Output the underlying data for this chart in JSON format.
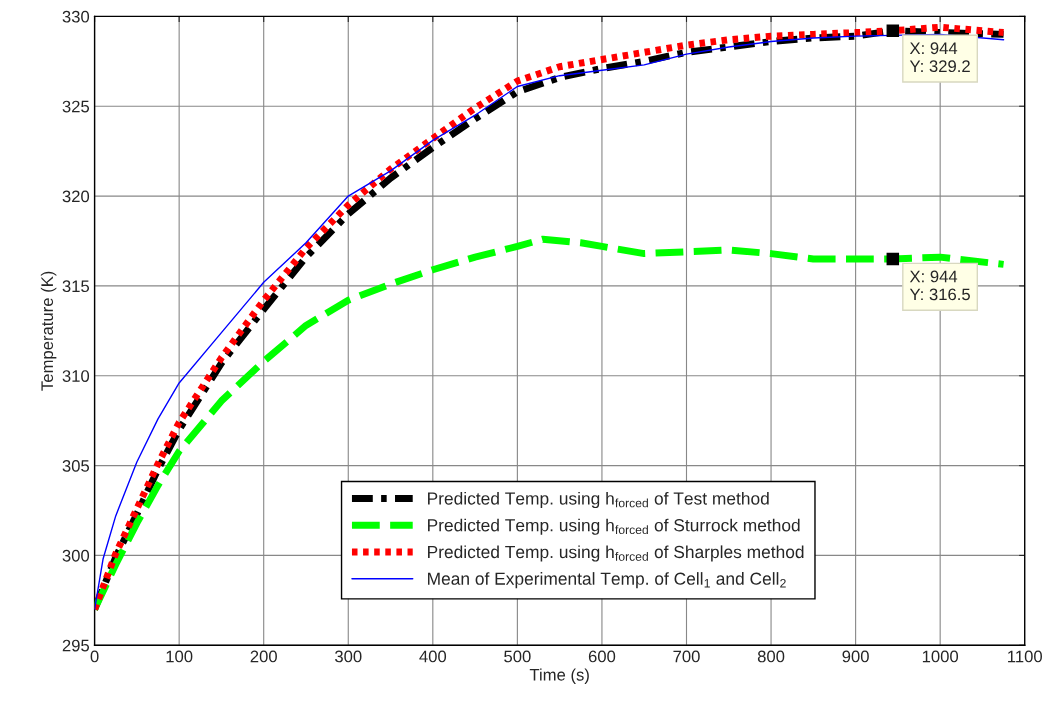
{
  "chart_data": {
    "type": "line",
    "xlabel": "Time (s)",
    "ylabel": "Temperature (K)",
    "xlim": [
      0,
      1100
    ],
    "xticks": [
      0,
      100,
      200,
      300,
      400,
      500,
      600,
      700,
      800,
      900,
      1000,
      1100
    ],
    "ylim": [
      295,
      330
    ],
    "yticks": [
      295,
      300,
      305,
      310,
      315,
      320,
      325,
      330
    ],
    "grid": true,
    "legend": "bottom",
    "series": [
      {
        "name": "Predicted Temp. using h$_{forced}$ of Test method",
        "color": "#000000",
        "line_style": "dashdot",
        "x": [
          0,
          25,
          50,
          75,
          100,
          150,
          200,
          250,
          300,
          350,
          400,
          450,
          500,
          550,
          600,
          650,
          700,
          750,
          800,
          850,
          900,
          944,
          1000,
          1075
        ],
        "values": [
          297,
          299.9,
          302.3,
          304.8,
          307.0,
          310.7,
          313.7,
          316.6,
          319.0,
          321.0,
          322.7,
          324.3,
          325.8,
          326.6,
          327.1,
          327.5,
          328.0,
          328.3,
          328.6,
          328.8,
          328.9,
          329.2,
          329.1,
          329.0
        ]
      },
      {
        "name": "Predicted Temp. using h$_{forced}$ of Sturrock method",
        "color": "#00ff00",
        "line_style": "dashed",
        "x": [
          0,
          25,
          50,
          75,
          100,
          150,
          200,
          250,
          300,
          350,
          400,
          450,
          500,
          530,
          575,
          600,
          650,
          700,
          750,
          800,
          850,
          900,
          944,
          1000,
          1075
        ],
        "values": [
          297,
          299.5,
          301.8,
          303.9,
          305.8,
          308.6,
          310.8,
          312.8,
          314.2,
          315.1,
          315.9,
          316.6,
          317.2,
          317.6,
          317.4,
          317.2,
          316.8,
          316.9,
          317.0,
          316.8,
          316.5,
          316.5,
          316.5,
          316.6,
          316.2
        ]
      },
      {
        "name": "Predicted Temp. using h$_{forced}$ of Sharples method",
        "color": "#ff0000",
        "line_style": "dotted",
        "x": [
          0,
          25,
          50,
          75,
          100,
          150,
          200,
          250,
          300,
          350,
          400,
          450,
          500,
          550,
          600,
          650,
          700,
          750,
          800,
          850,
          900,
          944,
          1000,
          1075
        ],
        "values": [
          297,
          300.1,
          302.6,
          305.1,
          307.4,
          311.0,
          314.2,
          317.1,
          319.5,
          321.5,
          323.2,
          324.9,
          326.4,
          327.2,
          327.6,
          328.0,
          328.4,
          328.7,
          328.9,
          329.0,
          329.1,
          329.2,
          329.4,
          329.1
        ]
      },
      {
        "name": "Mean of Experimental Temp. of Cell$_{1}$ and Cell$_{2}$",
        "color": "#0000ff",
        "line_style": "solid",
        "x": [
          0,
          10,
          25,
          50,
          75,
          100,
          150,
          200,
          250,
          300,
          350,
          400,
          450,
          500,
          550,
          600,
          650,
          700,
          750,
          800,
          850,
          900,
          1000,
          1075
        ],
        "values": [
          297,
          299.8,
          302.2,
          305.2,
          307.6,
          309.6,
          312.4,
          315.2,
          317.4,
          320.0,
          321.4,
          323.1,
          324.5,
          326.1,
          326.7,
          327.0,
          327.3,
          327.9,
          328.3,
          328.6,
          328.8,
          328.9,
          329.0,
          328.7
        ]
      }
    ],
    "annotations": [
      {
        "text": "X: 944\nY: 329.2",
        "x": 944,
        "y": 329.2
      },
      {
        "text": "X: 944\nY: 316.5",
        "x": 944,
        "y": 316.5
      }
    ]
  }
}
